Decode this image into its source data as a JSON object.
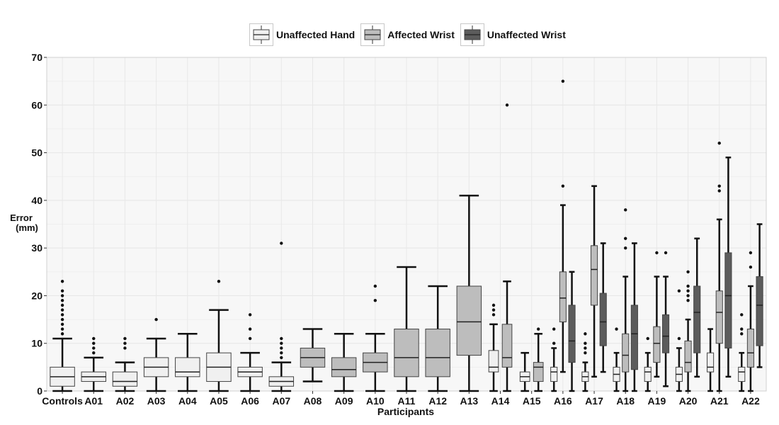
{
  "chart_data": {
    "type": "box",
    "xlabel": "Participants",
    "ylabel": "Error (mm)",
    "ylim": [
      0,
      70
    ],
    "yticks": [
      0,
      10,
      20,
      30,
      40,
      50,
      60,
      70
    ],
    "grid": true,
    "legend_position": "top-center",
    "categories": [
      "Controls",
      "A01",
      "A02",
      "A03",
      "A04",
      "A05",
      "A06",
      "A07",
      "A08",
      "A09",
      "A10",
      "A11",
      "A12",
      "A13",
      "A14",
      "A15",
      "A16",
      "A17",
      "A18",
      "A19",
      "A20",
      "A21",
      "A22"
    ],
    "series": [
      {
        "name": "Unaffected Hand",
        "color": "#f0f0f0"
      },
      {
        "name": "Affected Wrist",
        "color": "#bdbdbd"
      },
      {
        "name": "Unaffected Wrist",
        "color": "#5c5c5c"
      }
    ],
    "boxes": [
      {
        "category": "Controls",
        "series": "Unaffected Hand",
        "min": 0,
        "q1": 1,
        "median": 3,
        "q3": 5,
        "max": 11,
        "outliers": [
          12,
          13,
          14,
          15,
          16,
          17,
          18,
          19,
          20,
          21,
          23
        ]
      },
      {
        "category": "A01",
        "series": "Unaffected Hand",
        "min": 0,
        "q1": 2,
        "median": 3,
        "q3": 4,
        "max": 7,
        "outliers": [
          8,
          9,
          10,
          11
        ]
      },
      {
        "category": "A02",
        "series": "Unaffected Hand",
        "min": 0,
        "q1": 1,
        "median": 2,
        "q3": 4,
        "max": 6,
        "outliers": [
          9,
          10,
          11
        ]
      },
      {
        "category": "A03",
        "series": "Unaffected Hand",
        "min": 0,
        "q1": 3,
        "median": 5,
        "q3": 7,
        "max": 11,
        "outliers": [
          15
        ]
      },
      {
        "category": "A04",
        "series": "Unaffected Hand",
        "min": 0,
        "q1": 3,
        "median": 4,
        "q3": 7,
        "max": 12,
        "outliers": []
      },
      {
        "category": "A05",
        "series": "Unaffected Hand",
        "min": 0,
        "q1": 2,
        "median": 5,
        "q3": 8,
        "max": 17,
        "outliers": [
          23
        ]
      },
      {
        "category": "A06",
        "series": "Unaffected Hand",
        "min": 0,
        "q1": 3,
        "median": 4,
        "q3": 5,
        "max": 8,
        "outliers": [
          11,
          13,
          16
        ]
      },
      {
        "category": "A07",
        "series": "Unaffected Hand",
        "min": 0,
        "q1": 1,
        "median": 2,
        "q3": 3,
        "max": 6,
        "outliers": [
          7,
          8,
          9,
          10,
          11,
          31
        ]
      },
      {
        "category": "A08",
        "series": "Affected Wrist",
        "min": 2,
        "q1": 5,
        "median": 7,
        "q3": 9,
        "max": 13,
        "outliers": []
      },
      {
        "category": "A09",
        "series": "Affected Wrist",
        "min": 0,
        "q1": 3,
        "median": 4.5,
        "q3": 7,
        "max": 12,
        "outliers": []
      },
      {
        "category": "A10",
        "series": "Affected Wrist",
        "min": 0,
        "q1": 4,
        "median": 6,
        "q3": 8,
        "max": 12,
        "outliers": [
          19,
          22
        ]
      },
      {
        "category": "A11",
        "series": "Affected Wrist",
        "min": 0,
        "q1": 3,
        "median": 7,
        "q3": 13,
        "max": 26,
        "outliers": []
      },
      {
        "category": "A12",
        "series": "Affected Wrist",
        "min": 0,
        "q1": 3,
        "median": 7,
        "q3": 13,
        "max": 22,
        "outliers": []
      },
      {
        "category": "A13",
        "series": "Affected Wrist",
        "min": 0,
        "q1": 7.5,
        "median": 14.5,
        "q3": 22,
        "max": 41,
        "outliers": []
      },
      {
        "category": "A14",
        "series": "Unaffected Hand",
        "min": 0,
        "q1": 4,
        "median": 5,
        "q3": 8.5,
        "max": 14,
        "outliers": [
          16,
          17,
          18
        ]
      },
      {
        "category": "A14",
        "series": "Affected Wrist",
        "min": 0,
        "q1": 5,
        "median": 7,
        "q3": 14,
        "max": 23,
        "outliers": [
          60
        ]
      },
      {
        "category": "A15",
        "series": "Unaffected Hand",
        "min": 0,
        "q1": 2,
        "median": 3,
        "q3": 4,
        "max": 8,
        "outliers": []
      },
      {
        "category": "A15",
        "series": "Affected Wrist",
        "min": 0,
        "q1": 2,
        "median": 5,
        "q3": 6,
        "max": 12,
        "outliers": [
          13
        ]
      },
      {
        "category": "A16",
        "series": "Unaffected Hand",
        "min": 0,
        "q1": 2,
        "median": 4,
        "q3": 5,
        "max": 9,
        "outliers": [
          10,
          13
        ]
      },
      {
        "category": "A16",
        "series": "Affected Wrist",
        "min": 4,
        "q1": 14.5,
        "median": 19.5,
        "q3": 25,
        "max": 39,
        "outliers": [
          43,
          65
        ]
      },
      {
        "category": "A16",
        "series": "Unaffected Wrist",
        "min": 0,
        "q1": 6,
        "median": 10.5,
        "q3": 18,
        "max": 25,
        "outliers": []
      },
      {
        "category": "A17",
        "series": "Unaffected Hand",
        "min": 0,
        "q1": 2,
        "median": 3,
        "q3": 4,
        "max": 6,
        "outliers": [
          8,
          9,
          10,
          12
        ]
      },
      {
        "category": "A17",
        "series": "Affected Wrist",
        "min": 3,
        "q1": 18,
        "median": 25.5,
        "q3": 30.5,
        "max": 43,
        "outliers": []
      },
      {
        "category": "A17",
        "series": "Unaffected Wrist",
        "min": 4,
        "q1": 9.5,
        "median": 14.5,
        "q3": 20.5,
        "max": 31,
        "outliers": []
      },
      {
        "category": "A18",
        "series": "Unaffected Hand",
        "min": 0,
        "q1": 2,
        "median": 3.5,
        "q3": 5,
        "max": 8,
        "outliers": [
          13
        ]
      },
      {
        "category": "A18",
        "series": "Affected Wrist",
        "min": 0,
        "q1": 4,
        "median": 7.5,
        "q3": 12,
        "max": 24,
        "outliers": [
          30,
          32,
          38
        ]
      },
      {
        "category": "A18",
        "series": "Unaffected Wrist",
        "min": 0,
        "q1": 4.5,
        "median": 12,
        "q3": 18,
        "max": 31,
        "outliers": []
      },
      {
        "category": "A19",
        "series": "Unaffected Hand",
        "min": 0,
        "q1": 2,
        "median": 4,
        "q3": 5,
        "max": 8,
        "outliers": [
          11
        ]
      },
      {
        "category": "A19",
        "series": "Affected Wrist",
        "min": 3,
        "q1": 6,
        "median": 10,
        "q3": 13.5,
        "max": 24,
        "outliers": [
          29
        ]
      },
      {
        "category": "A19",
        "series": "Unaffected Wrist",
        "min": 1,
        "q1": 8,
        "median": 11.5,
        "q3": 16,
        "max": 24,
        "outliers": [
          29
        ]
      },
      {
        "category": "A20",
        "series": "Unaffected Hand",
        "min": 0,
        "q1": 2,
        "median": 3.5,
        "q3": 5,
        "max": 9,
        "outliers": [
          11,
          21
        ]
      },
      {
        "category": "A20",
        "series": "Affected Wrist",
        "min": 0,
        "q1": 4,
        "median": 6,
        "q3": 10.5,
        "max": 15,
        "outliers": [
          19,
          20,
          21,
          22,
          25
        ]
      },
      {
        "category": "A20",
        "series": "Unaffected Wrist",
        "min": 3,
        "q1": 8,
        "median": 16.5,
        "q3": 22,
        "max": 32,
        "outliers": []
      },
      {
        "category": "A21",
        "series": "Unaffected Hand",
        "min": 0,
        "q1": 4,
        "median": 5,
        "q3": 8,
        "max": 13,
        "outliers": []
      },
      {
        "category": "A21",
        "series": "Affected Wrist",
        "min": 0,
        "q1": 10,
        "median": 16.5,
        "q3": 21,
        "max": 36,
        "outliers": [
          42,
          43,
          52
        ]
      },
      {
        "category": "A21",
        "series": "Unaffected Wrist",
        "min": 3,
        "q1": 9,
        "median": 20,
        "q3": 29,
        "max": 49,
        "outliers": []
      },
      {
        "category": "A22",
        "series": "Unaffected Hand",
        "min": 0,
        "q1": 2,
        "median": 4,
        "q3": 5,
        "max": 8,
        "outliers": [
          12,
          13,
          16
        ]
      },
      {
        "category": "A22",
        "series": "Affected Wrist",
        "min": 0,
        "q1": 5,
        "median": 8,
        "q3": 13,
        "max": 22,
        "outliers": [
          26,
          29
        ]
      },
      {
        "category": "A22",
        "series": "Unaffected Wrist",
        "min": 5,
        "q1": 9.5,
        "median": 18,
        "q3": 24,
        "max": 35,
        "outliers": []
      }
    ]
  }
}
